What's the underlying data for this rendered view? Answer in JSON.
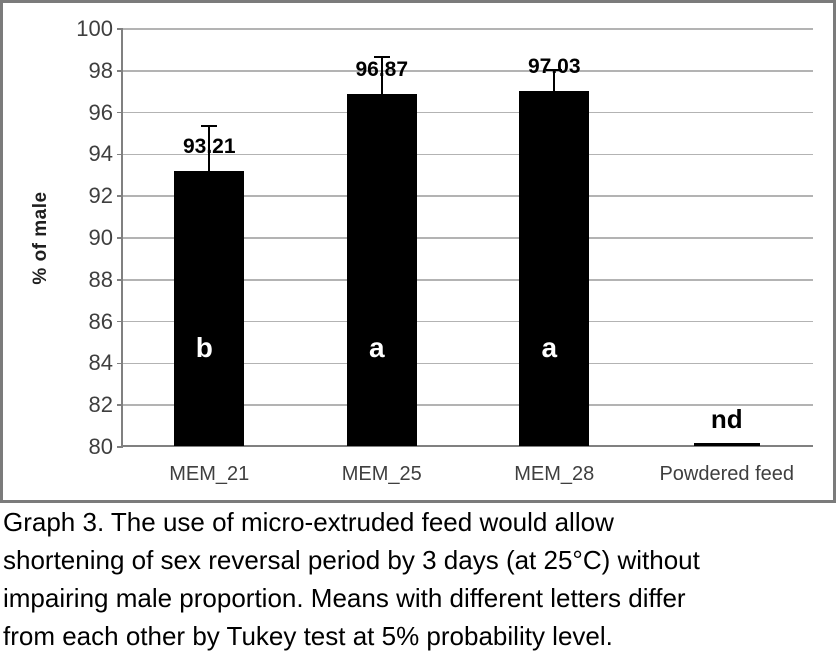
{
  "chart_data": {
    "type": "bar",
    "title": "Graph 3",
    "ylabel": "% of male",
    "xlabel": "",
    "categories": [
      "MEM_21",
      "MEM_25",
      "MEM_28",
      "Powdered feed"
    ],
    "values": [
      93.21,
      96.87,
      97.03,
      null
    ],
    "value_labels": [
      "93.21",
      "96.87",
      "97.03",
      "nd"
    ],
    "group_letters": [
      "b",
      "a",
      "a",
      null
    ],
    "errors_plus": [
      2.15,
      1.8,
      1.0,
      null
    ],
    "ylim": [
      80,
      100
    ],
    "yticks": [
      80,
      82,
      84,
      86,
      88,
      90,
      92,
      94,
      96,
      98,
      100
    ],
    "grid": true,
    "legend": "none"
  },
  "caption": {
    "lines": [
      "Graph 3. The use of micro-extruded feed would allow",
      "shortening of sex reversal period by 3 days (at 25°C) without",
      "impairing male proportion. Means with different letters differ",
      "from each other by Tukey test at 5% probability level."
    ]
  },
  "colors": {
    "bar": "#000000",
    "letter": "#ffffff",
    "value_label": "#000000",
    "nd_label": "#000000",
    "gridline": "#b3b3b3",
    "axis": "#808080",
    "tick_label": "#3f3f3f",
    "frame_border": "#7b7b7b",
    "caption_text": "#000000"
  }
}
